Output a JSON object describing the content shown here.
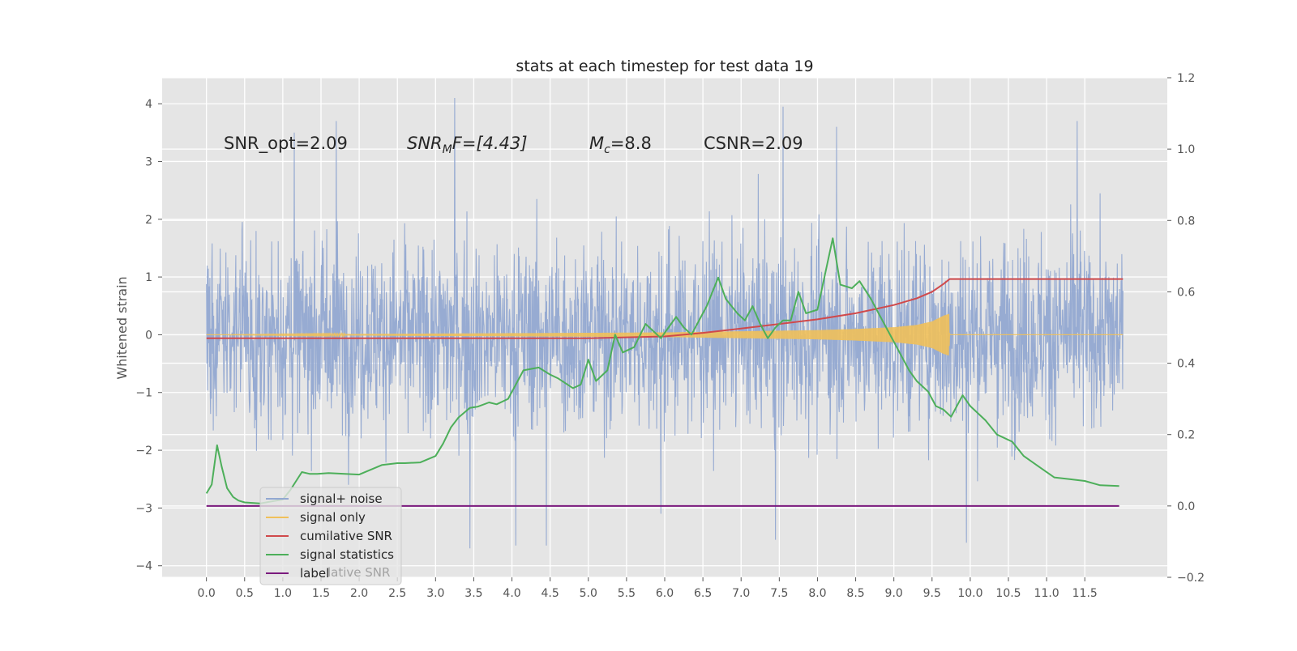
{
  "chart_data": {
    "type": "line",
    "title": "stats at each timestep for test data 19",
    "ylabel": "Whitened strain",
    "xlabel": "",
    "xlim": [
      -0.58,
      12.58
    ],
    "ylim": [
      -4.2,
      4.45
    ],
    "y2lim": [
      -0.2,
      1.2
    ],
    "x_ticks": [
      "0.0",
      "0.5",
      "1.0",
      "1.5",
      "2.0",
      "2.5",
      "3.0",
      "3.5",
      "4.0",
      "4.5",
      "5.0",
      "5.5",
      "6.0",
      "6.5",
      "7.0",
      "7.5",
      "8.0",
      "8.5",
      "9.0",
      "9.5",
      "10.0",
      "10.5",
      "11.0",
      "11.5"
    ],
    "y_ticks": [
      "4",
      "3",
      "2",
      "1",
      "0",
      "−1",
      "−2",
      "−3",
      "−4"
    ],
    "y2_ticks": [
      "1.2",
      "1.0",
      "0.8",
      "0.6",
      "0.4",
      "0.2",
      "0.0",
      "−0.2"
    ],
    "grid": true,
    "legend_position": "lower-left",
    "annotations": {
      "snr_opt": "SNR_opt=2.09",
      "snr_mf_main": "SNR",
      "snr_mf_sub": "M",
      "snr_mf_rest": "F=[4.43]",
      "mc_main": "M",
      "mc_sub": "c",
      "mc_rest": "=8.8",
      "csnr": "CSNR=2.09"
    },
    "legend_hidden_text": "lative SNR",
    "series": [
      {
        "name": "signal+ noise",
        "axis": "left",
        "color": "#92a8d1",
        "description_note": "dense noisy waveform, amplitude roughly ±2.5 with spikes to about ±3.5 to 4.1",
        "x_range": [
          0.0,
          12.0
        ],
        "spikes": [
          [
            3.25,
            4.1
          ],
          [
            1.15,
            3.5
          ],
          [
            1.7,
            3.7
          ],
          [
            7.55,
            3.95
          ],
          [
            8.25,
            3.6
          ],
          [
            11.4,
            3.7
          ],
          [
            5.95,
            -3.1
          ],
          [
            4.05,
            -3.65
          ],
          [
            4.45,
            -3.65
          ],
          [
            3.45,
            -3.7
          ],
          [
            7.45,
            -3.55
          ],
          [
            9.95,
            -3.6
          ]
        ]
      },
      {
        "name": "signal only",
        "axis": "left",
        "color": "#f0c05a",
        "x": [
          6.0,
          6.5,
          7.0,
          7.5,
          8.0,
          8.5,
          9.0,
          9.3,
          9.5,
          9.65,
          9.72,
          9.73,
          12.0
        ],
        "envelope": [
          0.04,
          0.05,
          0.06,
          0.07,
          0.08,
          0.1,
          0.13,
          0.17,
          0.23,
          0.33,
          0.36,
          0.0,
          0.0
        ]
      },
      {
        "name": "cumilative SNR",
        "axis": "right",
        "color": "#d0494b",
        "x": [
          0.0,
          3.0,
          5.0,
          6.0,
          6.5,
          7.0,
          7.5,
          8.0,
          8.5,
          9.0,
          9.3,
          9.5,
          9.65,
          9.73,
          12.0
        ],
        "values": [
          0.47,
          0.47,
          0.47,
          0.475,
          0.485,
          0.497,
          0.51,
          0.523,
          0.54,
          0.563,
          0.582,
          0.6,
          0.622,
          0.636,
          0.636
        ]
      },
      {
        "name": "signal statistics",
        "axis": "right",
        "color": "#4daf5a",
        "x": [
          0.0,
          0.07,
          0.14,
          0.2,
          0.27,
          0.35,
          0.42,
          0.5,
          0.7,
          1.0,
          1.1,
          1.25,
          1.35,
          1.45,
          1.6,
          2.0,
          2.3,
          2.5,
          2.6,
          2.8,
          3.0,
          3.1,
          3.2,
          3.3,
          3.45,
          3.55,
          3.7,
          3.8,
          3.95,
          4.15,
          4.35,
          4.5,
          4.6,
          4.8,
          4.9,
          5.0,
          5.1,
          5.25,
          5.35,
          5.45,
          5.6,
          5.75,
          5.85,
          5.95,
          6.05,
          6.15,
          6.25,
          6.35,
          6.55,
          6.7,
          6.8,
          6.95,
          7.05,
          7.15,
          7.25,
          7.35,
          7.45,
          7.55,
          7.65,
          7.75,
          7.85,
          8.0,
          8.2,
          8.3,
          8.45,
          8.55,
          8.7,
          8.85,
          9.0,
          9.1,
          9.2,
          9.3,
          9.45,
          9.55,
          9.65,
          9.75,
          9.9,
          10.0,
          10.2,
          10.35,
          10.55,
          10.7,
          10.9,
          11.1,
          11.3,
          11.5,
          11.7,
          11.95
        ],
        "values": [
          0.035,
          0.06,
          0.17,
          0.11,
          0.05,
          0.025,
          0.015,
          0.01,
          0.007,
          0.018,
          0.045,
          0.095,
          0.09,
          0.09,
          0.092,
          0.088,
          0.115,
          0.12,
          0.12,
          0.122,
          0.14,
          0.175,
          0.22,
          0.248,
          0.275,
          0.278,
          0.29,
          0.285,
          0.3,
          0.38,
          0.388,
          0.368,
          0.358,
          0.33,
          0.34,
          0.41,
          0.35,
          0.38,
          0.48,
          0.43,
          0.445,
          0.51,
          0.49,
          0.47,
          0.5,
          0.53,
          0.5,
          0.48,
          0.56,
          0.64,
          0.58,
          0.54,
          0.52,
          0.56,
          0.51,
          0.47,
          0.5,
          0.52,
          0.52,
          0.6,
          0.54,
          0.55,
          0.75,
          0.62,
          0.61,
          0.63,
          0.58,
          0.52,
          0.46,
          0.42,
          0.38,
          0.35,
          0.32,
          0.28,
          0.27,
          0.25,
          0.31,
          0.28,
          0.24,
          0.2,
          0.18,
          0.14,
          0.11,
          0.08,
          0.075,
          0.07,
          0.058,
          0.056
        ]
      },
      {
        "name": "label",
        "axis": "right",
        "color": "#7b1a7e",
        "x": [
          0.0,
          11.95
        ],
        "values": [
          0.0,
          0.0
        ]
      }
    ]
  }
}
